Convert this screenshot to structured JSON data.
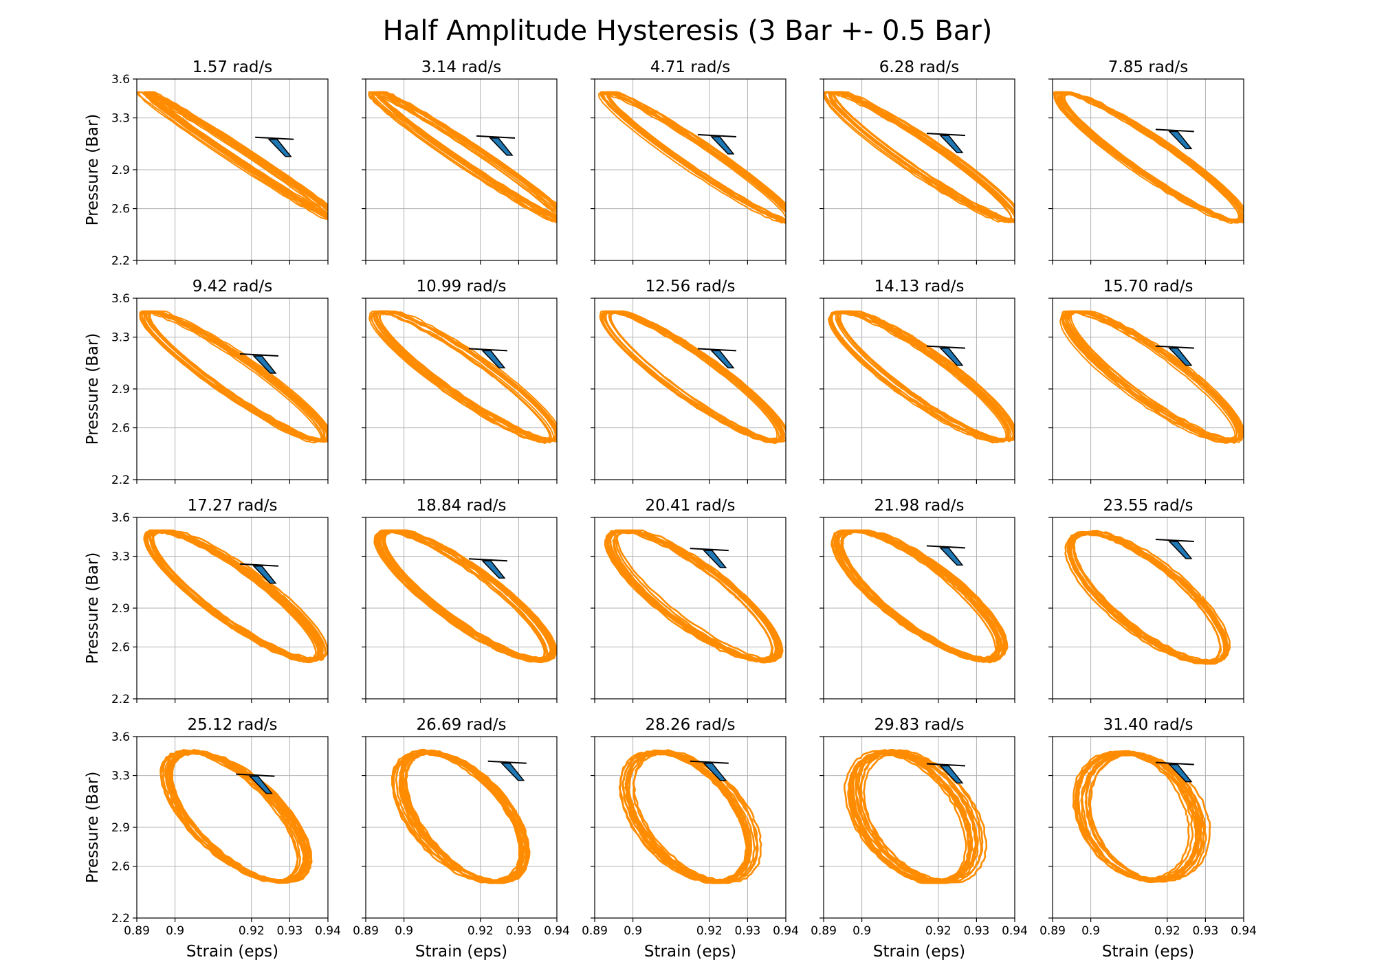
{
  "chart_data": {
    "type": "line",
    "title": "Half Amplitude Hysteresis (3 Bar +- 0.5 Bar)",
    "xlabel": "Strain (eps)",
    "ylabel": "Pressure (Bar)",
    "xlim": [
      0.89,
      0.94
    ],
    "ylim": [
      2.2,
      3.6
    ],
    "xticks": [
      "0.89",
      "0.9",
      "0.92",
      "0.93",
      "0.94"
    ],
    "xtick_values": [
      0.89,
      0.9,
      0.92,
      0.93,
      0.94
    ],
    "yticks": [
      "2.2",
      "2.6",
      "2.9",
      "3.3",
      "3.6"
    ],
    "ytick_values": [
      2.2,
      2.6,
      2.9,
      3.3,
      3.6
    ],
    "grid": true,
    "series_color": "#ff8c00",
    "marker_color": "#1f77b4",
    "marker_edge": "#000000",
    "panels": [
      {
        "title": "1.57 rad/s",
        "center": [
          0.917,
          3.0
        ],
        "rx": 0.003,
        "ry": 0.5,
        "tilt": 0.98,
        "spread": 0.004,
        "cursor": [
          0.926,
          3.14
        ]
      },
      {
        "title": "3.14 rad/s",
        "center": [
          0.917,
          3.0
        ],
        "rx": 0.0045,
        "ry": 0.5,
        "tilt": 0.95,
        "spread": 0.003,
        "cursor": [
          0.924,
          3.15
        ]
      },
      {
        "title": "4.71 rad/s",
        "center": [
          0.917,
          3.0
        ],
        "rx": 0.006,
        "ry": 0.5,
        "tilt": 0.92,
        "spread": 0.003,
        "cursor": [
          0.922,
          3.16
        ]
      },
      {
        "title": "6.28 rad/s",
        "center": [
          0.916,
          3.0
        ],
        "rx": 0.007,
        "ry": 0.5,
        "tilt": 0.9,
        "spread": 0.003,
        "cursor": [
          0.922,
          3.17
        ]
      },
      {
        "title": "7.85 rad/s",
        "center": [
          0.916,
          3.0
        ],
        "rx": 0.008,
        "ry": 0.5,
        "tilt": 0.88,
        "spread": 0.003,
        "cursor": [
          0.922,
          3.2
        ]
      },
      {
        "title": "9.42 rad/s",
        "center": [
          0.916,
          3.0
        ],
        "rx": 0.0085,
        "ry": 0.5,
        "tilt": 0.86,
        "spread": 0.003,
        "cursor": [
          0.922,
          3.16
        ]
      },
      {
        "title": "10.99 rad/s",
        "center": [
          0.916,
          3.0
        ],
        "rx": 0.009,
        "ry": 0.5,
        "tilt": 0.84,
        "spread": 0.003,
        "cursor": [
          0.922,
          3.2
        ]
      },
      {
        "title": "12.56 rad/s",
        "center": [
          0.916,
          3.0
        ],
        "rx": 0.0095,
        "ry": 0.5,
        "tilt": 0.82,
        "spread": 0.003,
        "cursor": [
          0.922,
          3.2
        ]
      },
      {
        "title": "14.13 rad/s",
        "center": [
          0.916,
          3.0
        ],
        "rx": 0.01,
        "ry": 0.5,
        "tilt": 0.8,
        "spread": 0.003,
        "cursor": [
          0.922,
          3.22
        ]
      },
      {
        "title": "15.70 rad/s",
        "center": [
          0.916,
          3.0
        ],
        "rx": 0.0105,
        "ry": 0.5,
        "tilt": 0.78,
        "spread": 0.003,
        "cursor": [
          0.922,
          3.22
        ]
      },
      {
        "title": "17.27 rad/s",
        "center": [
          0.916,
          3.0
        ],
        "rx": 0.011,
        "ry": 0.5,
        "tilt": 0.76,
        "spread": 0.003,
        "cursor": [
          0.922,
          3.23
        ]
      },
      {
        "title": "18.84 rad/s",
        "center": [
          0.916,
          3.0
        ],
        "rx": 0.0115,
        "ry": 0.5,
        "tilt": 0.74,
        "spread": 0.003,
        "cursor": [
          0.922,
          3.27
        ]
      },
      {
        "title": "20.41 rad/s",
        "center": [
          0.916,
          3.0
        ],
        "rx": 0.012,
        "ry": 0.5,
        "tilt": 0.7,
        "spread": 0.003,
        "cursor": [
          0.92,
          3.35
        ]
      },
      {
        "title": "21.98 rad/s",
        "center": [
          0.915,
          3.0
        ],
        "rx": 0.0125,
        "ry": 0.5,
        "tilt": 0.66,
        "spread": 0.003,
        "cursor": [
          0.922,
          3.37
        ]
      },
      {
        "title": "23.55 rad/s",
        "center": [
          0.915,
          2.98
        ],
        "rx": 0.013,
        "ry": 0.5,
        "tilt": 0.6,
        "spread": 0.004,
        "cursor": [
          0.922,
          3.42
        ]
      },
      {
        "title": "25.12 rad/s",
        "center": [
          0.916,
          2.98
        ],
        "rx": 0.0135,
        "ry": 0.5,
        "tilt": 0.45,
        "spread": 0.004,
        "cursor": [
          0.921,
          3.3
        ]
      },
      {
        "title": "26.69 rad/s",
        "center": [
          0.915,
          2.98
        ],
        "rx": 0.0135,
        "ry": 0.5,
        "tilt": 0.35,
        "spread": 0.004,
        "cursor": [
          0.927,
          3.4
        ]
      },
      {
        "title": "28.26 rad/s",
        "center": [
          0.915,
          2.98
        ],
        "rx": 0.014,
        "ry": 0.5,
        "tilt": 0.3,
        "spread": 0.004,
        "cursor": [
          0.92,
          3.4
        ]
      },
      {
        "title": "29.83 rad/s",
        "center": [
          0.914,
          2.98
        ],
        "rx": 0.0145,
        "ry": 0.5,
        "tilt": 0.25,
        "spread": 0.005,
        "cursor": [
          0.922,
          3.38
        ]
      },
      {
        "title": "31.40 rad/s",
        "center": [
          0.913,
          2.98
        ],
        "rx": 0.015,
        "ry": 0.49,
        "tilt": 0.15,
        "spread": 0.005,
        "cursor": [
          0.922,
          3.39
        ]
      }
    ]
  }
}
